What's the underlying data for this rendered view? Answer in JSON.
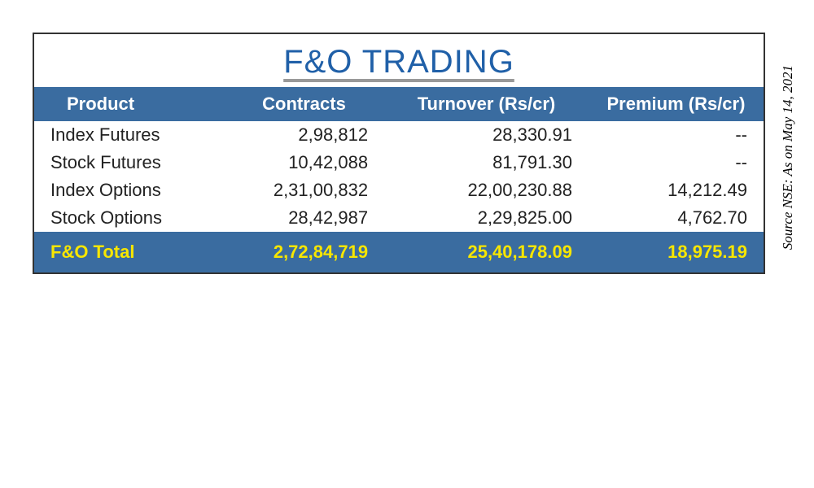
{
  "table": {
    "title": "F&O TRADING",
    "title_color": "#2060a8",
    "title_fontsize": 40,
    "header_bg": "#3a6ca0",
    "header_text_color": "#ffffff",
    "header_fontsize": 22,
    "body_fontsize": 22,
    "body_text_color": "#222222",
    "total_bg": "#3a6ca0",
    "total_text_color": "#f7e600",
    "border_color": "#333333",
    "columns": [
      {
        "label": "Product",
        "align": "left"
      },
      {
        "label": "Contracts",
        "align": "right"
      },
      {
        "label": "Turnover (Rs/cr)",
        "align": "right"
      },
      {
        "label": "Premium (Rs/cr)",
        "align": "right"
      }
    ],
    "rows": [
      {
        "product": "Index Futures",
        "contracts": "2,98,812",
        "turnover": "28,330.91",
        "premium": "--"
      },
      {
        "product": "Stock Futures",
        "contracts": "10,42,088",
        "turnover": "81,791.30",
        "premium": "--"
      },
      {
        "product": "Index Options",
        "contracts": "2,31,00,832",
        "turnover": "22,00,230.88",
        "premium": "14,212.49"
      },
      {
        "product": "Stock Options",
        "contracts": "28,42,987",
        "turnover": "2,29,825.00",
        "premium": "4,762.70"
      }
    ],
    "total": {
      "label": "F&O Total",
      "contracts": "2,72,84,719",
      "turnover": "25,40,178.09",
      "premium": "18,975.19"
    }
  },
  "source": "Source NSE: As on May 14, 2021"
}
